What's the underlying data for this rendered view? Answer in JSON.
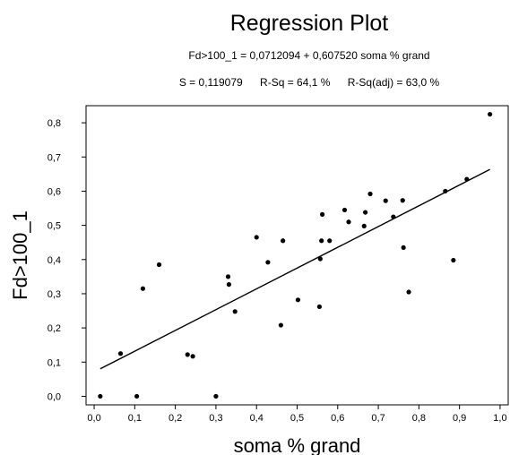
{
  "chart_data": {
    "type": "scatter",
    "title": "Regression Plot",
    "equation": "Fd>100_1 = 0,0712094 + 0,607520 soma % grand",
    "stats": {
      "s": "S = 0,119079",
      "r_sq": "R-Sq = 64,1 %",
      "r_sq_adj": "R-Sq(adj) = 63,0 %"
    },
    "xlabel": "soma % grand",
    "ylabel": "Fd>100_1",
    "xlim": [
      -0.02,
      1.02
    ],
    "ylim": [
      -0.025,
      0.85
    ],
    "xticks": [
      0.0,
      0.1,
      0.2,
      0.3,
      0.4,
      0.5,
      0.6,
      0.7,
      0.8,
      0.9,
      1.0
    ],
    "xtick_labels": [
      "0,0",
      "0,1",
      "0,2",
      "0,3",
      "0,4",
      "0,5",
      "0,6",
      "0,7",
      "0,8",
      "0,9",
      "1,0"
    ],
    "yticks": [
      0.0,
      0.1,
      0.2,
      0.3,
      0.4,
      0.5,
      0.6,
      0.7,
      0.8
    ],
    "ytick_labels": [
      "0,0",
      "0,1",
      "0,2",
      "0,3",
      "0,4",
      "0,5",
      "0,6",
      "0,7",
      "0,8"
    ],
    "regression": {
      "intercept": 0.0712094,
      "slope": 0.60752,
      "x_range": [
        0.015,
        0.975
      ]
    },
    "grid": false,
    "points": [
      {
        "x": 0.015,
        "y": 0.0
      },
      {
        "x": 0.065,
        "y": 0.125
      },
      {
        "x": 0.105,
        "y": 0.0
      },
      {
        "x": 0.12,
        "y": 0.315
      },
      {
        "x": 0.16,
        "y": 0.385
      },
      {
        "x": 0.23,
        "y": 0.122
      },
      {
        "x": 0.243,
        "y": 0.117
      },
      {
        "x": 0.3,
        "y": 0.0
      },
      {
        "x": 0.33,
        "y": 0.35
      },
      {
        "x": 0.332,
        "y": 0.327
      },
      {
        "x": 0.347,
        "y": 0.248
      },
      {
        "x": 0.4,
        "y": 0.465
      },
      {
        "x": 0.428,
        "y": 0.392
      },
      {
        "x": 0.46,
        "y": 0.208
      },
      {
        "x": 0.465,
        "y": 0.455
      },
      {
        "x": 0.502,
        "y": 0.282
      },
      {
        "x": 0.555,
        "y": 0.262
      },
      {
        "x": 0.557,
        "y": 0.402
      },
      {
        "x": 0.56,
        "y": 0.455
      },
      {
        "x": 0.562,
        "y": 0.532
      },
      {
        "x": 0.58,
        "y": 0.455
      },
      {
        "x": 0.617,
        "y": 0.545
      },
      {
        "x": 0.627,
        "y": 0.51
      },
      {
        "x": 0.665,
        "y": 0.498
      },
      {
        "x": 0.668,
        "y": 0.538
      },
      {
        "x": 0.68,
        "y": 0.592
      },
      {
        "x": 0.718,
        "y": 0.572
      },
      {
        "x": 0.737,
        "y": 0.525
      },
      {
        "x": 0.76,
        "y": 0.573
      },
      {
        "x": 0.762,
        "y": 0.435
      },
      {
        "x": 0.775,
        "y": 0.305
      },
      {
        "x": 0.865,
        "y": 0.6
      },
      {
        "x": 0.885,
        "y": 0.398
      },
      {
        "x": 0.918,
        "y": 0.635
      },
      {
        "x": 0.975,
        "y": 0.825
      }
    ]
  }
}
